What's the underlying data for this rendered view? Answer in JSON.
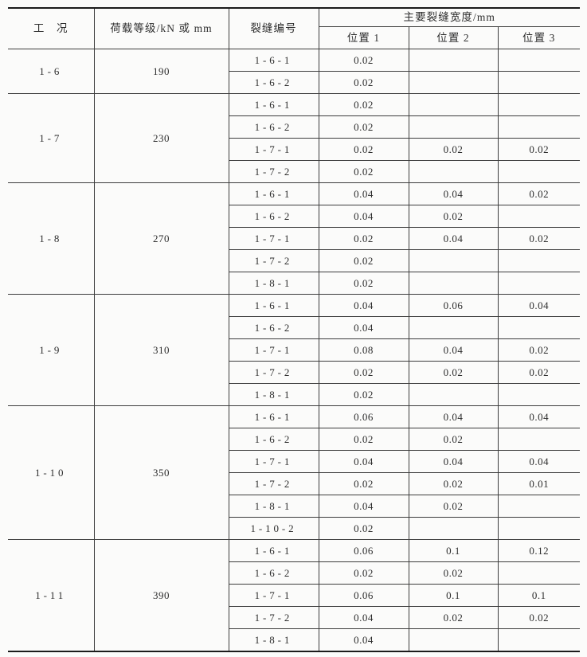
{
  "table": {
    "title_semantic": "crack-width-measurement-table",
    "unit": "mm",
    "header": {
      "col_condition": "工　况",
      "col_load": "荷载等级/kN 或 mm",
      "col_crack_id": "裂缝编号",
      "col_width_group": "主要裂缝宽度/mm",
      "sub_positions": [
        "位置 1",
        "位置 2",
        "位置 3"
      ]
    },
    "groups": [
      {
        "condition": "1-6",
        "load": "190",
        "rows": [
          {
            "crack_id": "1-6-1",
            "p1": "0.02",
            "p2": "",
            "p3": ""
          },
          {
            "crack_id": "1-6-2",
            "p1": "0.02",
            "p2": "",
            "p3": ""
          }
        ]
      },
      {
        "condition": "1-7",
        "load": "230",
        "rows": [
          {
            "crack_id": "1-6-1",
            "p1": "0.02",
            "p2": "",
            "p3": ""
          },
          {
            "crack_id": "1-6-2",
            "p1": "0.02",
            "p2": "",
            "p3": ""
          },
          {
            "crack_id": "1-7-1",
            "p1": "0.02",
            "p2": "0.02",
            "p3": "0.02"
          },
          {
            "crack_id": "1-7-2",
            "p1": "0.02",
            "p2": "",
            "p3": ""
          }
        ]
      },
      {
        "condition": "1-8",
        "load": "270",
        "rows": [
          {
            "crack_id": "1-6-1",
            "p1": "0.04",
            "p2": "0.04",
            "p3": "0.02"
          },
          {
            "crack_id": "1-6-2",
            "p1": "0.04",
            "p2": "0.02",
            "p3": ""
          },
          {
            "crack_id": "1-7-1",
            "p1": "0.02",
            "p2": "0.04",
            "p3": "0.02"
          },
          {
            "crack_id": "1-7-2",
            "p1": "0.02",
            "p2": "",
            "p3": ""
          },
          {
            "crack_id": "1-8-1",
            "p1": "0.02",
            "p2": "",
            "p3": ""
          }
        ]
      },
      {
        "condition": "1-9",
        "load": "310",
        "rows": [
          {
            "crack_id": "1-6-1",
            "p1": "0.04",
            "p2": "0.06",
            "p3": "0.04"
          },
          {
            "crack_id": "1-6-2",
            "p1": "0.04",
            "p2": "",
            "p3": ""
          },
          {
            "crack_id": "1-7-1",
            "p1": "0.08",
            "p2": "0.04",
            "p3": "0.02"
          },
          {
            "crack_id": "1-7-2",
            "p1": "0.02",
            "p2": "0.02",
            "p3": "0.02"
          },
          {
            "crack_id": "1-8-1",
            "p1": "0.02",
            "p2": "",
            "p3": ""
          }
        ]
      },
      {
        "condition": "1-10",
        "load": "350",
        "rows": [
          {
            "crack_id": "1-6-1",
            "p1": "0.06",
            "p2": "0.04",
            "p3": "0.04"
          },
          {
            "crack_id": "1-6-2",
            "p1": "0.02",
            "p2": "0.02",
            "p3": ""
          },
          {
            "crack_id": "1-7-1",
            "p1": "0.04",
            "p2": "0.04",
            "p3": "0.04"
          },
          {
            "crack_id": "1-7-2",
            "p1": "0.02",
            "p2": "0.02",
            "p3": "0.01"
          },
          {
            "crack_id": "1-8-1",
            "p1": "0.04",
            "p2": "0.02",
            "p3": ""
          },
          {
            "crack_id": "1-10-2",
            "p1": "0.02",
            "p2": "",
            "p3": ""
          }
        ]
      },
      {
        "condition": "1-11",
        "load": "390",
        "rows": [
          {
            "crack_id": "1-6-1",
            "p1": "0.06",
            "p2": "0.1",
            "p3": "0.12"
          },
          {
            "crack_id": "1-6-2",
            "p1": "0.02",
            "p2": "0.02",
            "p3": ""
          },
          {
            "crack_id": "1-7-1",
            "p1": "0.06",
            "p2": "0.1",
            "p3": "0.1"
          },
          {
            "crack_id": "1-7-2",
            "p1": "0.04",
            "p2": "0.02",
            "p3": "0.02"
          },
          {
            "crack_id": "1-8-1",
            "p1": "0.04",
            "p2": "",
            "p3": ""
          }
        ]
      }
    ]
  }
}
